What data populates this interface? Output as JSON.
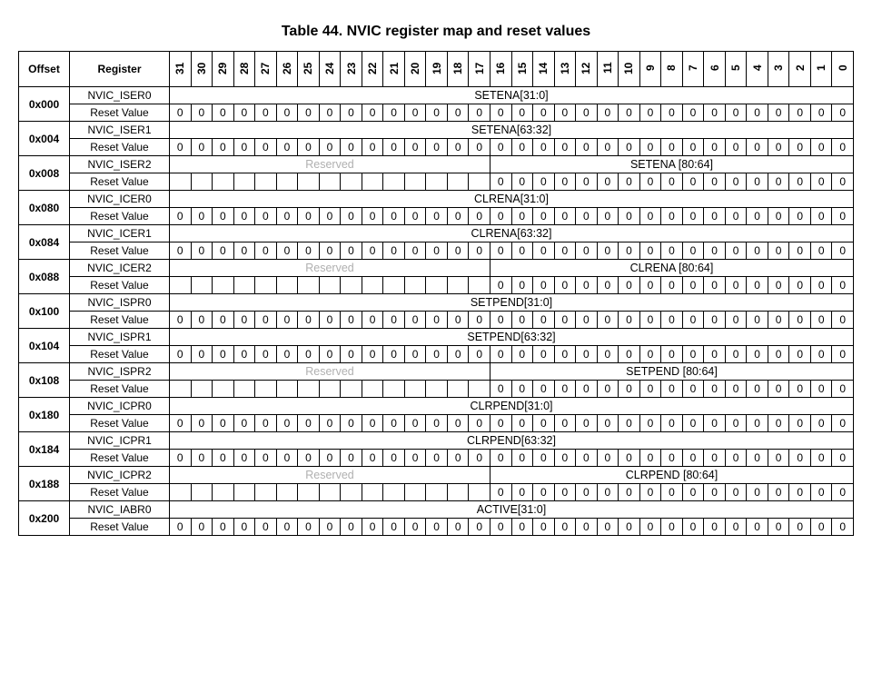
{
  "title": "Table 44. NVIC register map and reset values",
  "headers": {
    "offset": "Offset",
    "register": "Register"
  },
  "bits": [
    "31",
    "30",
    "29",
    "28",
    "27",
    "26",
    "25",
    "24",
    "23",
    "22",
    "21",
    "20",
    "19",
    "18",
    "17",
    "16",
    "15",
    "14",
    "13",
    "12",
    "11",
    "10",
    "9",
    "8",
    "7",
    "6",
    "5",
    "4",
    "3",
    "2",
    "1",
    "0"
  ],
  "rows": [
    {
      "offset": "0x000",
      "register": "NVIC_ISER0",
      "field_rows": [
        {
          "span": 32,
          "label": "SETENA[31:0]"
        }
      ],
      "reset_bits": 32,
      "reset_label": "Reset Value"
    },
    {
      "offset": "0x004",
      "register": "NVIC_ISER1",
      "field_rows": [
        {
          "span": 32,
          "label": "SETENA[63:32]"
        }
      ],
      "reset_bits": 32,
      "reset_label": "Reset Value"
    },
    {
      "offset": "0x008",
      "register": "NVIC_ISER2",
      "field_rows": [
        {
          "span": 15,
          "label": "Reserved",
          "reserved": true
        },
        {
          "span": 17,
          "label": "SETENA [80:64]"
        }
      ],
      "reset_bits": 17,
      "reset_blank": 15,
      "reset_label": "Reset Value"
    },
    {
      "offset": "0x080",
      "register": "NVIC_ICER0",
      "field_rows": [
        {
          "span": 32,
          "label": "CLRENA[31:0]"
        }
      ],
      "reset_bits": 32,
      "reset_label": "Reset Value"
    },
    {
      "offset": "0x084",
      "register": "NVIC_ICER1",
      "field_rows": [
        {
          "span": 32,
          "label": "CLRENA[63:32]"
        }
      ],
      "reset_bits": 32,
      "reset_label": "Reset Value"
    },
    {
      "offset": "0x088",
      "register": "NVIC_ICER2",
      "field_rows": [
        {
          "span": 15,
          "label": "Reserved",
          "reserved": true
        },
        {
          "span": 17,
          "label": "CLRENA [80:64]"
        }
      ],
      "reset_bits": 17,
      "reset_blank": 15,
      "reset_label": "Reset Value"
    },
    {
      "offset": "0x100",
      "register": "NVIC_ISPR0",
      "field_rows": [
        {
          "span": 32,
          "label": "SETPEND[31:0]"
        }
      ],
      "reset_bits": 32,
      "reset_label": "Reset Value"
    },
    {
      "offset": "0x104",
      "register": "NVIC_ISPR1",
      "field_rows": [
        {
          "span": 32,
          "label": "SETPEND[63:32]"
        }
      ],
      "reset_bits": 32,
      "reset_label": "Reset Value"
    },
    {
      "offset": "0x108",
      "register": "NVIC_ISPR2",
      "field_rows": [
        {
          "span": 15,
          "label": "Reserved",
          "reserved": true
        },
        {
          "span": 17,
          "label": "SETPEND [80:64]"
        }
      ],
      "reset_bits": 17,
      "reset_blank": 15,
      "reset_label": "Reset Value"
    },
    {
      "offset": "0x180",
      "register": "NVIC_ICPR0",
      "field_rows": [
        {
          "span": 32,
          "label": "CLRPEND[31:0]"
        }
      ],
      "reset_bits": 32,
      "reset_label": "Reset Value"
    },
    {
      "offset": "0x184",
      "register": "NVIC_ICPR1",
      "field_rows": [
        {
          "span": 32,
          "label": "CLRPEND[63:32]"
        }
      ],
      "reset_bits": 32,
      "reset_label": "Reset Value"
    },
    {
      "offset": "0x188",
      "register": "NVIC_ICPR2",
      "field_rows": [
        {
          "span": 15,
          "label": "Reserved",
          "reserved": true
        },
        {
          "span": 17,
          "label": "CLRPEND [80:64]"
        }
      ],
      "reset_bits": 17,
      "reset_blank": 15,
      "reset_label": "Reset Value"
    },
    {
      "offset": "0x200",
      "register": "NVIC_IABR0",
      "field_rows": [
        {
          "span": 32,
          "label": "ACTIVE[31:0]"
        }
      ],
      "reset_bits": 32,
      "reset_label": "Reset Value"
    }
  ],
  "reset_value": "0"
}
